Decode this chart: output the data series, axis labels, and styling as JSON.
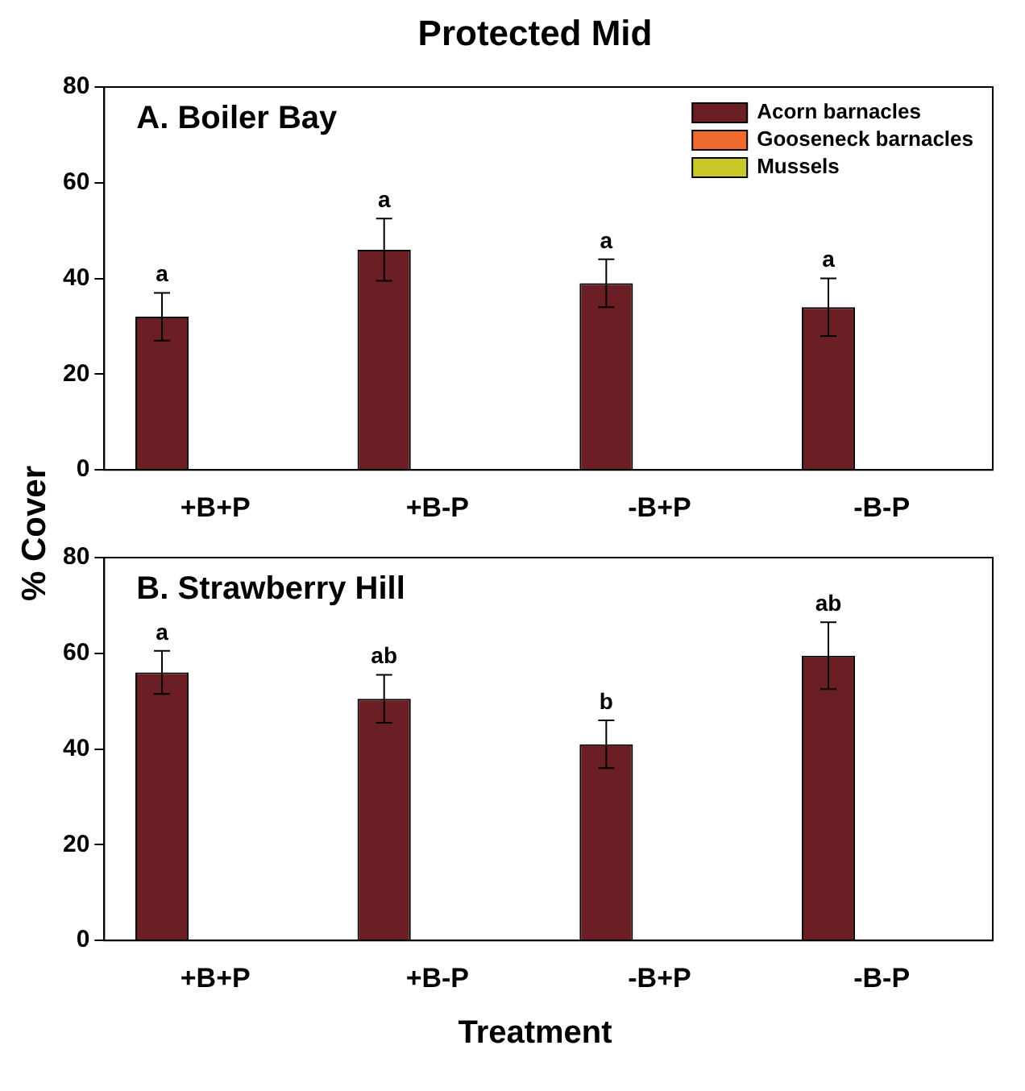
{
  "chart_data": [
    {
      "type": "bar",
      "title": "Protected Mid",
      "ylabel": "% Cover",
      "categories": [
        "+B+P",
        "+B-P",
        "-B+P",
        "-B-P"
      ],
      "series": [
        {
          "name": "Acorn barnacles",
          "color": "#6b1f24",
          "values": [
            32,
            46,
            39,
            34
          ],
          "errors": [
            5,
            6.5,
            5,
            6
          ]
        },
        {
          "name": "Gooseneck barnacles",
          "color": "#ee6a2e",
          "values": [
            0,
            0,
            0,
            0
          ]
        },
        {
          "name": "Mussels",
          "color": "#c9c92a",
          "values": [
            0,
            0,
            0,
            0
          ]
        }
      ],
      "ylim": [
        0,
        80
      ],
      "yticks": [
        0,
        20,
        40,
        60,
        80
      ],
      "grid": false,
      "legend": "top right",
      "annotations": [
        "A. Boiler Bay",
        "a",
        "a",
        "a",
        "a"
      ]
    },
    {
      "type": "bar",
      "xlabel": "Treatment",
      "categories": [
        "+B+P",
        "+B-P",
        "-B+P",
        "-B-P"
      ],
      "series": [
        {
          "color": "#6b1f24",
          "values": [
            56,
            50.5,
            41,
            59.5
          ],
          "errors": [
            4.5,
            5,
            5,
            7
          ]
        },
        {
          "color": "#ee6a2e",
          "values": [
            0,
            0,
            0,
            0
          ]
        },
        {
          "color": "#c9c92a",
          "values": [
            0,
            0,
            0,
            0
          ]
        }
      ],
      "ylim": [
        0,
        80
      ],
      "yticks": [
        0,
        20,
        40,
        60,
        80
      ],
      "grid": false,
      "legend": false,
      "annotations": [
        "B. Strawberry Hill",
        "a",
        "ab",
        "b",
        "ab"
      ]
    }
  ]
}
